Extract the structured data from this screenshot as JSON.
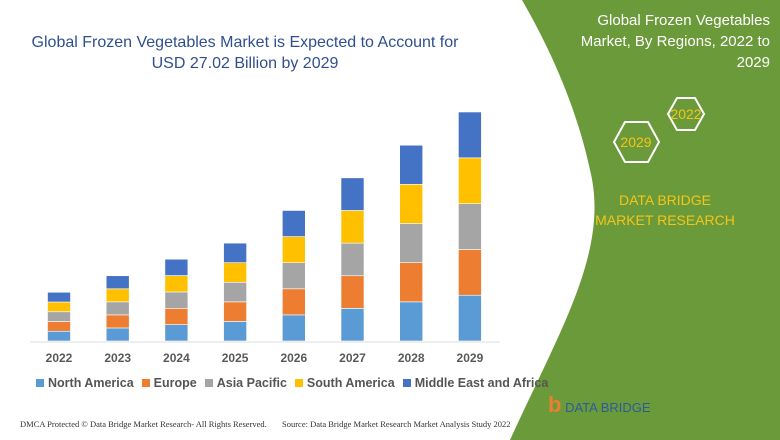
{
  "title": "Global Frozen Vegetables Market is Expected to Account for USD 27.02 Billion by 2029",
  "side_panel": {
    "title": "Global Frozen Vegetables Market, By Regions, 2022 to 2029",
    "hex_start": "2022",
    "hex_end": "2029",
    "brand": "DATA BRIDGE MARKET RESEARCH",
    "logo_text": "DATA BRIDGE",
    "color": "#6b9a3a",
    "accent": "#f5c518"
  },
  "footer": {
    "left": "DMCA Protected © Data Bridge Market Research- All Rights Reserved.",
    "right": "Source: Data Bridge Market Research Market Analysis Study 2022"
  },
  "chart_data": {
    "type": "bar",
    "stacked": true,
    "title": "Global Frozen Vegetables Market is Expected to Account for USD 27.02 Billion by 2029",
    "xlabel": "",
    "ylabel": "",
    "ylim": [
      0,
      30
    ],
    "grid": false,
    "legend_position": "bottom",
    "categories": [
      "2022",
      "2023",
      "2024",
      "2025",
      "2026",
      "2027",
      "2028",
      "2029"
    ],
    "series": [
      {
        "name": "North America",
        "color": "#5b9bd5",
        "values": [
          1.15,
          1.54,
          1.93,
          2.31,
          3.08,
          3.85,
          4.62,
          5.4
        ]
      },
      {
        "name": "Europe",
        "color": "#ed7d31",
        "values": [
          1.15,
          1.54,
          1.93,
          2.31,
          3.08,
          3.85,
          4.62,
          5.4
        ]
      },
      {
        "name": "Asia Pacific",
        "color": "#a5a5a5",
        "values": [
          1.15,
          1.54,
          1.93,
          2.31,
          3.08,
          3.85,
          4.62,
          5.4
        ]
      },
      {
        "name": "South America",
        "color": "#ffc000",
        "values": [
          1.15,
          1.54,
          1.93,
          2.31,
          3.08,
          3.85,
          4.62,
          5.41
        ]
      },
      {
        "name": "Middle East and Africa",
        "color": "#4472c4",
        "values": [
          1.15,
          1.54,
          1.93,
          2.31,
          3.08,
          3.85,
          4.62,
          5.41
        ]
      }
    ]
  }
}
